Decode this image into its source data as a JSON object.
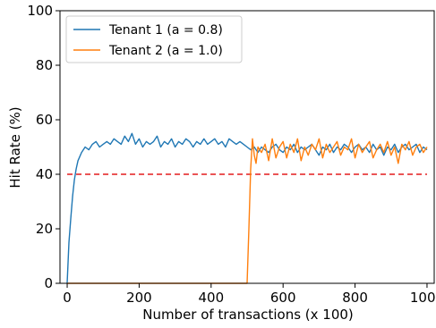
{
  "chart_data": {
    "type": "line",
    "xlabel": "Number of transactions (x 100)",
    "ylabel": "Hit Rate (%)",
    "xlim": [
      -20,
      1020
    ],
    "ylim": [
      0,
      100
    ],
    "xticks": [
      0,
      200,
      400,
      600,
      800,
      1000
    ],
    "yticks": [
      0,
      20,
      40,
      60,
      80,
      100
    ],
    "grid": false,
    "legend_position": "top-left",
    "reference_line": {
      "y": 40,
      "color": "#e41a1c",
      "style": "dashed"
    },
    "series": [
      {
        "name": "Tenant 1 (a = 0.8)",
        "color": "#1f77b4",
        "x": [
          0,
          5,
          10,
          15,
          20,
          25,
          30,
          40,
          50,
          60,
          70,
          80,
          90,
          100,
          110,
          120,
          130,
          140,
          150,
          160,
          170,
          180,
          190,
          200,
          210,
          220,
          230,
          240,
          250,
          260,
          270,
          280,
          290,
          300,
          310,
          320,
          330,
          340,
          350,
          360,
          370,
          380,
          390,
          400,
          410,
          420,
          430,
          440,
          450,
          460,
          470,
          480,
          490,
          500,
          510,
          520,
          530,
          540,
          550,
          560,
          570,
          580,
          590,
          600,
          610,
          620,
          630,
          640,
          650,
          660,
          670,
          680,
          690,
          700,
          710,
          720,
          730,
          740,
          750,
          760,
          770,
          780,
          790,
          800,
          810,
          820,
          830,
          840,
          850,
          860,
          870,
          880,
          890,
          900,
          910,
          920,
          930,
          940,
          950,
          960,
          970,
          980,
          990,
          1000
        ],
        "y": [
          0,
          15,
          24,
          32,
          38,
          42,
          45,
          48,
          50,
          49,
          51,
          52,
          50,
          51,
          52,
          51,
          53,
          52,
          51,
          54,
          52,
          55,
          51,
          53,
          50,
          52,
          51,
          52,
          54,
          50,
          52,
          51,
          53,
          50,
          52,
          51,
          53,
          52,
          50,
          52,
          51,
          53,
          51,
          52,
          53,
          51,
          52,
          50,
          53,
          52,
          51,
          52,
          51,
          50,
          49,
          50,
          48,
          50,
          49,
          48,
          50,
          51,
          49,
          48,
          50,
          49,
          51,
          48,
          50,
          49,
          50,
          51,
          49,
          47,
          50,
          49,
          51,
          48,
          50,
          49,
          51,
          50,
          48,
          50,
          51,
          49,
          50,
          48,
          51,
          49,
          50,
          47,
          50,
          49,
          51,
          48,
          50,
          51,
          49,
          50,
          51,
          48,
          50,
          49
        ]
      },
      {
        "name": "Tenant 2 (a = 1.0)",
        "color": "#ff7f0e",
        "x": [
          0,
          100,
          200,
          300,
          400,
          500,
          505,
          510,
          515,
          520,
          525,
          530,
          540,
          550,
          560,
          570,
          580,
          590,
          600,
          610,
          620,
          630,
          640,
          650,
          660,
          670,
          680,
          690,
          700,
          710,
          720,
          730,
          740,
          750,
          760,
          770,
          780,
          790,
          800,
          810,
          820,
          830,
          840,
          850,
          860,
          870,
          880,
          890,
          900,
          910,
          920,
          930,
          940,
          950,
          960,
          970,
          980,
          990,
          1000
        ],
        "y": [
          0,
          0,
          0,
          0,
          0,
          0,
          20,
          42,
          53,
          47,
          44,
          50,
          48,
          51,
          45,
          53,
          46,
          50,
          52,
          46,
          51,
          48,
          53,
          45,
          50,
          47,
          51,
          49,
          53,
          46,
          51,
          48,
          50,
          52,
          47,
          50,
          49,
          53,
          46,
          51,
          48,
          50,
          52,
          46,
          49,
          51,
          48,
          52,
          47,
          50,
          44,
          51,
          49,
          52,
          47,
          50,
          51,
          48,
          50
        ]
      }
    ]
  }
}
